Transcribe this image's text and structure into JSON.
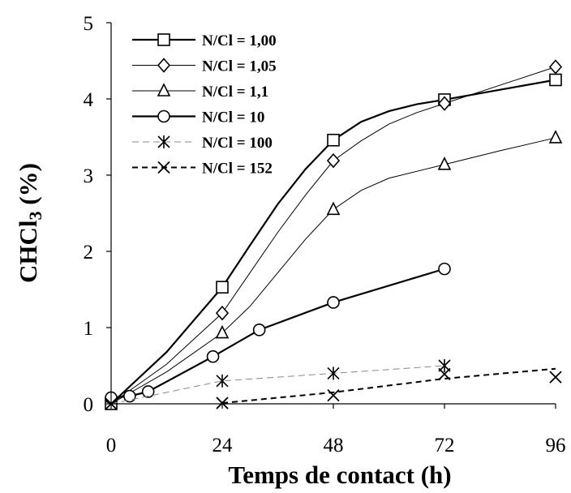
{
  "chart_data": {
    "type": "line",
    "title": "",
    "xlabel": "Temps de contact (h)",
    "ylabel_main": "CHCl",
    "ylabel_sub": "3",
    "ylabel_suffix": " (%)",
    "xlim": [
      0,
      96
    ],
    "ylim": [
      0,
      5
    ],
    "xticks": [
      0,
      24,
      48,
      72,
      96
    ],
    "yticks": [
      0,
      1,
      2,
      3,
      4,
      5
    ],
    "grid": false,
    "legend_position": "top-left",
    "series": [
      {
        "name": "N/Cl = 1,00",
        "marker": "square",
        "style": "solid-thick",
        "color": "#000000",
        "points": [
          [
            0,
            0
          ],
          [
            24,
            1.53
          ],
          [
            48,
            3.46
          ],
          [
            72,
            3.99
          ],
          [
            96,
            4.25
          ]
        ],
        "curve": [
          [
            0,
            0
          ],
          [
            12,
            0.68
          ],
          [
            24,
            1.53
          ],
          [
            30,
            2.08
          ],
          [
            36,
            2.62
          ],
          [
            42,
            3.08
          ],
          [
            48,
            3.46
          ],
          [
            54,
            3.7
          ],
          [
            60,
            3.84
          ],
          [
            66,
            3.93
          ],
          [
            72,
            3.99
          ],
          [
            84,
            4.12
          ],
          [
            96,
            4.25
          ]
        ]
      },
      {
        "name": "N/Cl = 1,05",
        "marker": "diamond",
        "style": "solid-thin",
        "color": "#000000",
        "points": [
          [
            24,
            1.19
          ],
          [
            48,
            3.19
          ],
          [
            72,
            3.94
          ],
          [
            96,
            4.42
          ]
        ],
        "curve": [
          [
            0,
            0
          ],
          [
            12,
            0.52
          ],
          [
            24,
            1.19
          ],
          [
            30,
            1.72
          ],
          [
            36,
            2.25
          ],
          [
            42,
            2.74
          ],
          [
            48,
            3.19
          ],
          [
            54,
            3.45
          ],
          [
            60,
            3.67
          ],
          [
            66,
            3.82
          ],
          [
            72,
            3.94
          ],
          [
            84,
            4.18
          ],
          [
            96,
            4.42
          ]
        ]
      },
      {
        "name": "N/Cl = 1,1",
        "marker": "triangle",
        "style": "solid-thin",
        "color": "#000000",
        "points": [
          [
            24,
            0.93
          ],
          [
            48,
            2.55
          ],
          [
            72,
            3.14
          ],
          [
            96,
            3.49
          ]
        ],
        "curve": [
          [
            0,
            0
          ],
          [
            12,
            0.42
          ],
          [
            24,
            0.93
          ],
          [
            30,
            1.28
          ],
          [
            36,
            1.72
          ],
          [
            42,
            2.16
          ],
          [
            48,
            2.55
          ],
          [
            54,
            2.8
          ],
          [
            60,
            2.96
          ],
          [
            66,
            3.05
          ],
          [
            72,
            3.14
          ],
          [
            84,
            3.32
          ],
          [
            96,
            3.49
          ]
        ]
      },
      {
        "name": "N/Cl = 10",
        "marker": "circle",
        "style": "solid-thick",
        "color": "#000000",
        "points": [
          [
            0,
            0.08
          ],
          [
            4,
            0.1
          ],
          [
            8,
            0.16
          ],
          [
            22,
            0.62
          ],
          [
            32,
            0.97
          ],
          [
            48,
            1.33
          ],
          [
            72,
            1.77
          ]
        ],
        "curve": [
          [
            0,
            0.08
          ],
          [
            4,
            0.1
          ],
          [
            8,
            0.16
          ],
          [
            22,
            0.62
          ],
          [
            32,
            0.97
          ],
          [
            48,
            1.33
          ],
          [
            72,
            1.77
          ]
        ]
      },
      {
        "name": "N/Cl = 100",
        "marker": "asterisk",
        "style": "dashed-thin",
        "color": "#888888",
        "points": [
          [
            24,
            0.3
          ],
          [
            48,
            0.4
          ],
          [
            72,
            0.5
          ]
        ],
        "curve": [
          [
            0,
            0
          ],
          [
            24,
            0.3
          ],
          [
            48,
            0.4
          ],
          [
            72,
            0.5
          ]
        ]
      },
      {
        "name": "N/Cl = 152",
        "marker": "x",
        "style": "dashed-thick",
        "color": "#000000",
        "points": [
          [
            0,
            0
          ],
          [
            24,
            0.01
          ],
          [
            48,
            0.11
          ],
          [
            72,
            0.39
          ],
          [
            96,
            0.35
          ]
        ],
        "curve": [
          [
            24,
            0.01
          ],
          [
            48,
            0.15
          ],
          [
            72,
            0.33
          ],
          [
            96,
            0.46
          ]
        ]
      }
    ]
  }
}
